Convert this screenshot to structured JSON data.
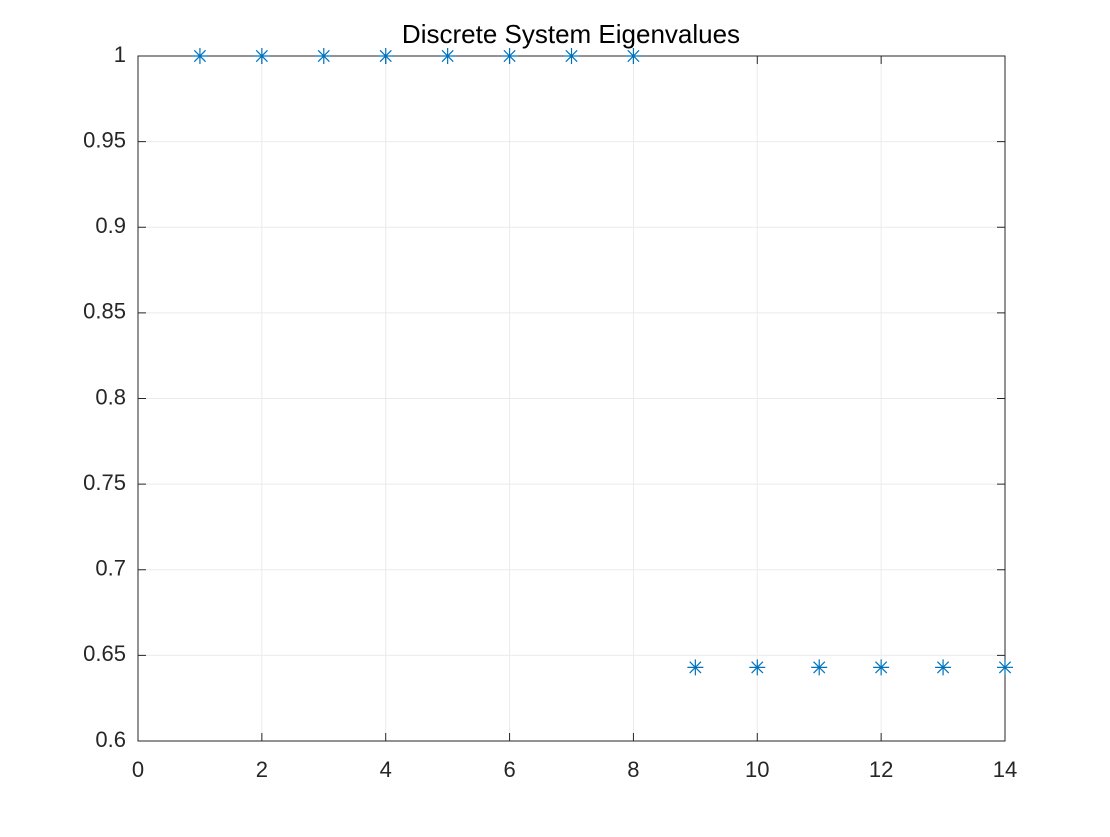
{
  "chart_data": {
    "type": "scatter",
    "title": "Discrete System Eigenvalues",
    "series": [
      {
        "name": "eigenvalues",
        "color": "#0072bd",
        "marker": "asterisk",
        "x": [
          1,
          2,
          3,
          4,
          5,
          6,
          7,
          8,
          9,
          10,
          11,
          12,
          13,
          14
        ],
        "values": [
          1,
          1,
          1,
          1,
          1,
          1,
          1,
          1,
          0.643,
          0.643,
          0.643,
          0.643,
          0.643,
          0.643
        ]
      }
    ],
    "xlim": [
      0,
      14
    ],
    "xticks": [
      0,
      2,
      4,
      6,
      8,
      10,
      12,
      14
    ],
    "ylim": [
      0.6,
      1
    ],
    "yticks": [
      0.6,
      0.65,
      0.7,
      0.75,
      0.8,
      0.85,
      0.9,
      0.95,
      1
    ],
    "grid": true,
    "legend": false
  }
}
